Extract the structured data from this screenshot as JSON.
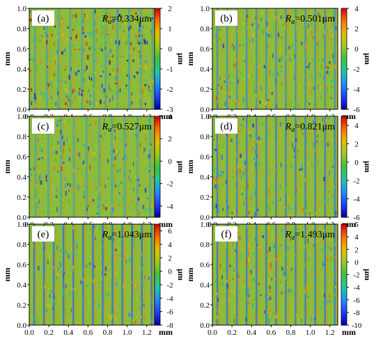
{
  "colors": {
    "colormap": [
      "#0000a0",
      "#1e40ff",
      "#1e90ff",
      "#20c8a0",
      "#40c040",
      "#a0c820",
      "#e0c000",
      "#ff7000",
      "#d00000"
    ],
    "surface_base": "#8cbc3a"
  },
  "chart_data": [
    {
      "type": "heatmap",
      "panel": "(a)",
      "annotation": {
        "symbol": "R",
        "subscript": "a",
        "value": "=0.334μm"
      },
      "xlabel": "mm",
      "ylabel": "mm",
      "colorbar_label": "μm",
      "xlim": [
        0.0,
        1.28
      ],
      "ylim": [
        0.0,
        1.0
      ],
      "x_ticks": [
        "0.0",
        "0.2",
        "0.4",
        "0.6",
        "0.8",
        "1.0",
        "1.2"
      ],
      "y_ticks": [
        "0.0",
        "0.2",
        "0.4",
        "0.6",
        "0.8",
        "1.0"
      ],
      "colorbar_range": [
        -3,
        2
      ],
      "colorbar_ticks": [
        "2",
        "1",
        "0",
        "-1",
        "-2",
        "-3"
      ],
      "groove_spacing_mm": 0.12,
      "groove_strength": 0.35,
      "noise": 0.9
    },
    {
      "type": "heatmap",
      "panel": "(b)",
      "annotation": {
        "symbol": "R",
        "subscript": "a",
        "value": "=0.501μm"
      },
      "xlabel": "mm",
      "ylabel": "mm",
      "colorbar_label": "μm",
      "xlim": [
        0.0,
        1.28
      ],
      "ylim": [
        0.0,
        1.0
      ],
      "x_ticks": [
        "0.0",
        "0.2",
        "0.4",
        "0.6",
        "0.8",
        "1.0",
        "1.2"
      ],
      "y_ticks": [
        "0.0",
        "0.2",
        "0.4",
        "0.6",
        "0.8",
        "1.0"
      ],
      "colorbar_range": [
        -6,
        4
      ],
      "colorbar_ticks": [
        "4",
        "2",
        "0",
        "-2",
        "-4",
        "-6"
      ],
      "groove_spacing_mm": 0.1,
      "groove_strength": 0.6,
      "noise": 0.55
    },
    {
      "type": "heatmap",
      "panel": "(c)",
      "annotation": {
        "symbol": "R",
        "subscript": "a",
        "value": "=0.527μm"
      },
      "xlabel": "mm",
      "ylabel": "mm",
      "colorbar_label": "μm",
      "xlim": [
        0.0,
        1.28
      ],
      "ylim": [
        0.0,
        1.0
      ],
      "x_ticks": [
        "0.0",
        "0.2",
        "0.4",
        "0.6",
        "0.8",
        "1.0",
        "1.2"
      ],
      "y_ticks": [
        "0.0",
        "0.2",
        "0.4",
        "0.6",
        "0.8",
        "1.0"
      ],
      "colorbar_range": [
        -5,
        4
      ],
      "colorbar_ticks": [
        "4",
        "2",
        "0",
        "-2",
        "-4"
      ],
      "groove_spacing_mm": 0.13,
      "groove_strength": 0.3,
      "noise": 0.6
    },
    {
      "type": "heatmap",
      "panel": "(d)",
      "annotation": {
        "symbol": "R",
        "subscript": "a",
        "value": "=0.821μm"
      },
      "xlabel": "mm",
      "ylabel": "mm",
      "colorbar_label": "μm",
      "xlim": [
        0.0,
        1.28
      ],
      "ylim": [
        0.0,
        1.0
      ],
      "x_ticks": [
        "0.0",
        "0.2",
        "0.4",
        "0.6",
        "0.8",
        "1.0",
        "1.2"
      ],
      "y_ticks": [
        "0.0",
        "0.2",
        "0.4",
        "0.6",
        "0.8",
        "1.0"
      ],
      "colorbar_range": [
        -6,
        5
      ],
      "colorbar_ticks": [
        "4",
        "2",
        "0",
        "-2",
        "-4",
        "-6"
      ],
      "groove_spacing_mm": 0.1,
      "groove_strength": 0.75,
      "noise": 0.5
    },
    {
      "type": "heatmap",
      "panel": "(e)",
      "annotation": {
        "symbol": "R",
        "subscript": "a",
        "value": "=1.043μm"
      },
      "xlabel": "mm",
      "ylabel": "mm",
      "colorbar_label": "μm",
      "xlim": [
        0.0,
        1.28
      ],
      "ylim": [
        0.0,
        1.0
      ],
      "x_ticks": [
        "0.0",
        "0.2",
        "0.4",
        "0.6",
        "0.8",
        "1.0",
        "1.2"
      ],
      "y_ticks": [
        "0.0",
        "0.2",
        "0.4",
        "0.6",
        "0.8",
        "1.0"
      ],
      "colorbar_range": [
        -8,
        7
      ],
      "colorbar_ticks": [
        "6",
        "4",
        "2",
        "0",
        "-2",
        "-4",
        "-6",
        "-8"
      ],
      "groove_spacing_mm": 0.1,
      "groove_strength": 0.85,
      "noise": 0.45
    },
    {
      "type": "heatmap",
      "panel": "(f)",
      "annotation": {
        "symbol": "R",
        "subscript": "a",
        "value": "=1.493μm"
      },
      "xlabel": "mm",
      "ylabel": "mm",
      "colorbar_label": "μm",
      "xlim": [
        0.0,
        1.28
      ],
      "ylim": [
        0.0,
        1.0
      ],
      "x_ticks": [
        "0.0",
        "0.2",
        "0.4",
        "0.6",
        "0.8",
        "1.0",
        "1.2"
      ],
      "y_ticks": [
        "0.0",
        "0.2",
        "0.4",
        "0.6",
        "0.8",
        "1.0"
      ],
      "colorbar_range": [
        -10,
        6
      ],
      "colorbar_ticks": [
        "6",
        "4",
        "2",
        "0",
        "-2",
        "-4",
        "-6",
        "-8",
        "-10"
      ],
      "groove_spacing_mm": 0.1,
      "groove_strength": 0.8,
      "noise": 0.5
    }
  ]
}
